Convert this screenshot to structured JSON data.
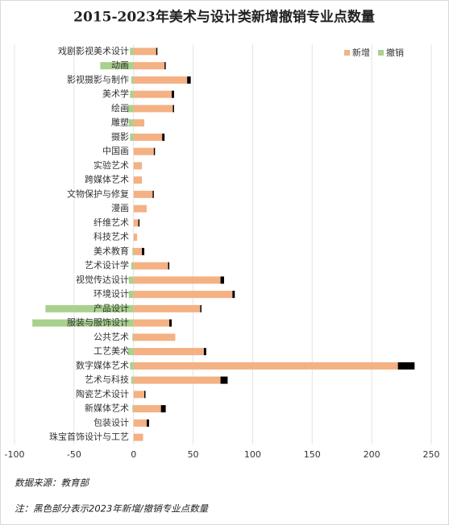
{
  "chart_data": {
    "type": "bar",
    "orientation": "horizontal",
    "stacked": true,
    "title": "2015-2023年美术与设计类新增撤销专业点数量",
    "categories": [
      "戏剧影视美术设计",
      "动画",
      "影视摄影与制作",
      "美术学",
      "绘画",
      "雕塑",
      "摄影",
      "中国画",
      "实验艺术",
      "跨媒体艺术",
      "文物保护与修复",
      "漫画",
      "纤维艺术",
      "科技艺术",
      "美术教育",
      "艺术设计学",
      "视觉传达设计",
      "环境设计",
      "产品设计",
      "服装与服饰设计",
      "公共艺术",
      "工艺美术",
      "数字媒体艺术",
      "艺术与科技",
      "陶瓷艺术设计",
      "新媒体艺术",
      "包装设计",
      "珠宝首饰设计与工艺"
    ],
    "series": [
      {
        "name": "新增",
        "color": "#f4b183",
        "values": [
          19,
          26,
          45,
          32,
          33,
          9,
          24,
          17,
          7,
          7,
          16,
          11,
          4,
          3,
          7,
          29,
          73,
          83,
          56,
          30,
          35,
          59,
          222,
          73,
          9,
          23,
          11,
          8
        ]
      },
      {
        "color": "#000000",
        "values": [
          1,
          1,
          3,
          2,
          1,
          0,
          2,
          1,
          0,
          0,
          1,
          0,
          1,
          0,
          2,
          1,
          3,
          2,
          1,
          2,
          0,
          2,
          14,
          6,
          1,
          4,
          2,
          0
        ]
      },
      {
        "name": "撤销",
        "color": "#a9d18e",
        "values": [
          -3,
          -28,
          -2,
          -3,
          -5,
          -4,
          -3,
          0,
          0,
          0,
          0,
          0,
          0,
          0,
          -1,
          -2,
          -4,
          -4,
          -74,
          -85,
          -1,
          -5,
          -3,
          -2,
          0,
          -1,
          0,
          0
        ]
      }
    ],
    "xlim": [
      -100,
      250
    ],
    "xticks": [
      -100,
      -50,
      0,
      50,
      100,
      150,
      200,
      250
    ],
    "grid": true,
    "legend": "top-right",
    "source": "数据来源：教育部",
    "note": "注：黑色部分表示2023年新增/撤销专业点数量"
  }
}
